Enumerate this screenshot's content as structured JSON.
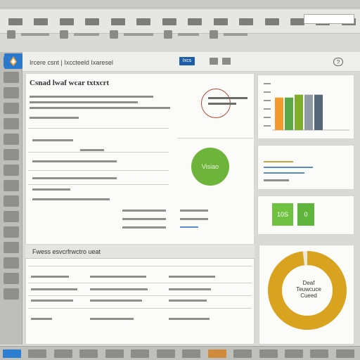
{
  "app": {
    "title": "Ircere csnt | Ixccteeld Ixaresel",
    "primary_button": "Ixcs"
  },
  "main": {
    "title": "Csnad lwaf wcar txtxcrt",
    "stat_label": "Visiao"
  },
  "widgets": {
    "mini_chart": {
      "bars": [
        {
          "value": 0.68,
          "color": "#f29a2e"
        },
        {
          "value": 0.68,
          "color": "#5aa843"
        },
        {
          "value": 0.74,
          "color": "#7fae2a"
        },
        {
          "value": 0.74,
          "color": "#8f9aa4"
        },
        {
          "value": 0.74,
          "color": "#56677a"
        }
      ]
    },
    "green_blocks": [
      {
        "label": "10S",
        "color": "#6fc23f"
      },
      {
        "label": "0",
        "color": "#5fb53b"
      }
    ]
  },
  "list": {
    "title": "Fwess esvcrfrwctro ueat"
  },
  "donut": {
    "label_line1": "Deaf",
    "label_line2": "Teuwcuce Cueed",
    "color": "#d9a21f",
    "fill": 0.98
  },
  "colors": {
    "accent": "#2c7fd0",
    "green": "#6fb43a",
    "orange": "#f29a2e",
    "gold": "#d9a21f"
  }
}
